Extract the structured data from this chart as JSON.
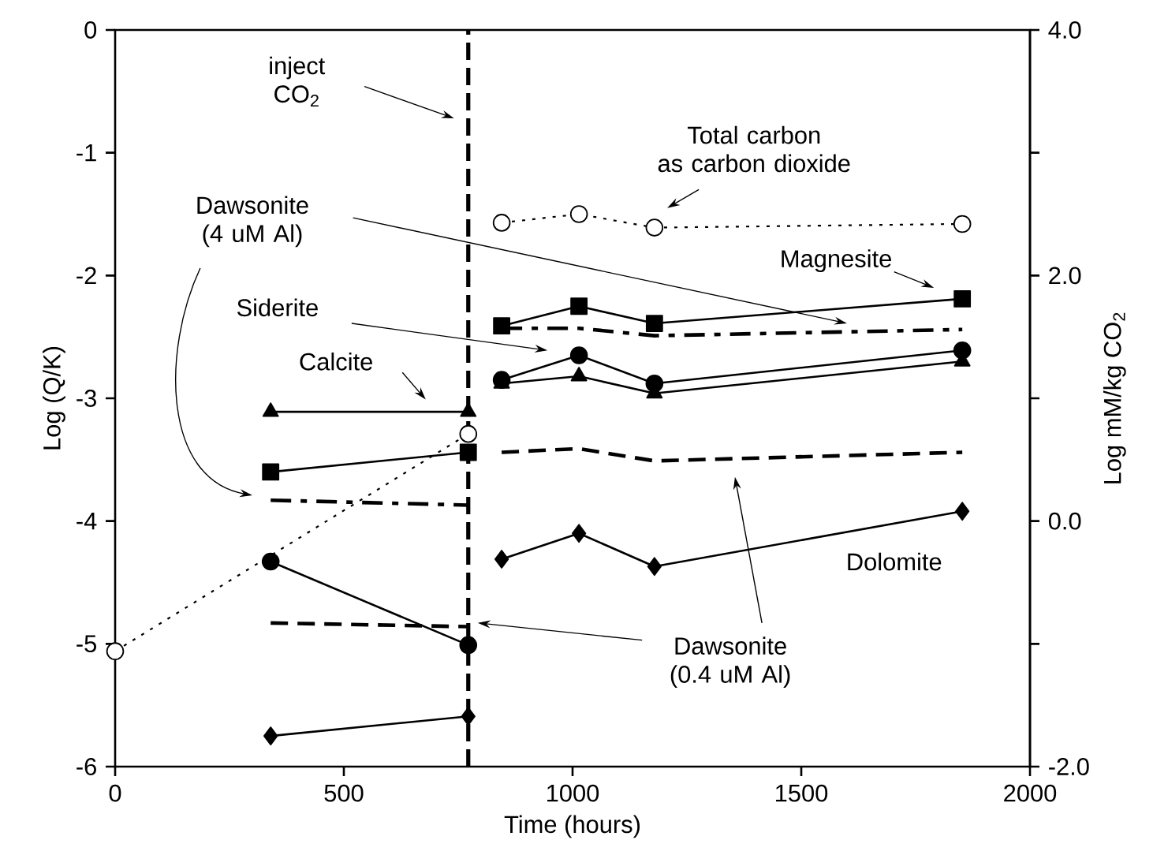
{
  "chart_data": {
    "type": "line",
    "xlabel": "Time (hours)",
    "ylabel": "Log (Q/K)",
    "y2label": "Log mM/kg CO$_{2}$",
    "xlim": [
      0,
      2000
    ],
    "ylim": [
      -6,
      0
    ],
    "y2lim": [
      -2,
      4
    ],
    "xticks": [
      0,
      500,
      1000,
      1500,
      2000
    ],
    "yticks": [
      -6,
      -5,
      -4,
      -3,
      -2,
      -1,
      0
    ],
    "y2ticks": [
      {
        "value": -2,
        "label": "-2.0"
      },
      {
        "value": -1,
        "label": null
      },
      {
        "value": 0,
        "label": "0.0"
      },
      {
        "value": 1,
        "label": null
      },
      {
        "value": 2,
        "label": "2.0"
      },
      {
        "value": 3,
        "label": null
      },
      {
        "value": 4,
        "label": "4.0"
      }
    ],
    "series": [
      {
        "color": "#000000",
        "marker": "square",
        "line_style": "solid",
        "x": [
          340,
          772
        ],
        "values": [
          -3.6,
          -3.44
        ]
      },
      {
        "color": "#000000",
        "marker": "square",
        "line_style": "solid",
        "x": [
          845,
          1014,
          1179,
          1852
        ],
        "values": [
          -2.41,
          -2.25,
          -2.39,
          -2.19
        ]
      },
      {
        "color": "#000000",
        "marker": "triangle",
        "line_style": "solid",
        "x": [
          340,
          772
        ],
        "values": [
          -3.11,
          -3.11
        ]
      },
      {
        "color": "#000000",
        "marker": "triangle",
        "line_style": "solid",
        "x": [
          845,
          1014,
          1179,
          1852
        ],
        "values": [
          -2.88,
          -2.82,
          -2.96,
          -2.7
        ]
      },
      {
        "color": "#000000",
        "marker": "circle",
        "line_style": "solid",
        "x": [
          340,
          772
        ],
        "values": [
          -4.33,
          -5.01
        ]
      },
      {
        "color": "#000000",
        "marker": "circle",
        "line_style": "solid",
        "x": [
          845,
          1014,
          1179,
          1852
        ],
        "values": [
          -2.85,
          -2.65,
          -2.88,
          -2.61
        ]
      },
      {
        "color": "#000000",
        "marker": "diamond",
        "line_style": "solid",
        "x": [
          340,
          772
        ],
        "values": [
          -5.75,
          -5.59
        ]
      },
      {
        "color": "#000000",
        "marker": "diamond",
        "line_style": "solid",
        "x": [
          845,
          1014,
          1179,
          1852
        ],
        "values": [
          -4.31,
          -4.1,
          -4.37,
          -3.92
        ]
      },
      {
        "color": "#000000",
        "marker": "none",
        "line_style": "dashdot",
        "x": [
          340,
          772
        ],
        "values": [
          -3.83,
          -3.87
        ]
      },
      {
        "color": "#000000",
        "marker": "none",
        "line_style": "dashdot",
        "x": [
          845,
          1014,
          1179,
          1852
        ],
        "values": [
          -2.43,
          -2.43,
          -2.49,
          -2.44
        ]
      },
      {
        "color": "#000000",
        "marker": "none",
        "line_style": "dashed",
        "x": [
          340,
          772
        ],
        "values": [
          -4.83,
          -4.86
        ]
      },
      {
        "color": "#000000",
        "marker": "none",
        "line_style": "dashed",
        "x": [
          845,
          1014,
          1179,
          1852
        ],
        "values": [
          -3.44,
          -3.41,
          -3.51,
          -3.44
        ]
      },
      {
        "color": "#000000",
        "marker": "circle",
        "line_style": "dotted",
        "axis": "y2",
        "x": [
          0,
          772
        ],
        "values": [
          -1.06,
          0.71
        ]
      },
      {
        "color": "#000000",
        "marker": "circle",
        "line_style": "dotted",
        "axis": "y2",
        "x": [
          845,
          1014,
          1179,
          1852
        ],
        "values": [
          2.43,
          2.5,
          2.39,
          2.42
        ]
      }
    ],
    "ref_lines": [
      {
        "axis": "x",
        "value": 772,
        "label": "inject CO$_{2}$",
        "line_style": "dashed",
        "color": "#000000"
      }
    ],
    "annotations": [
      "Total carbon as carbon dioxide",
      "Magnesite",
      "Dawsonite (4 uM Al)",
      "Siderite",
      "Calcite",
      "Dolomite",
      "Dawsonite (0.4 uM Al)"
    ]
  }
}
